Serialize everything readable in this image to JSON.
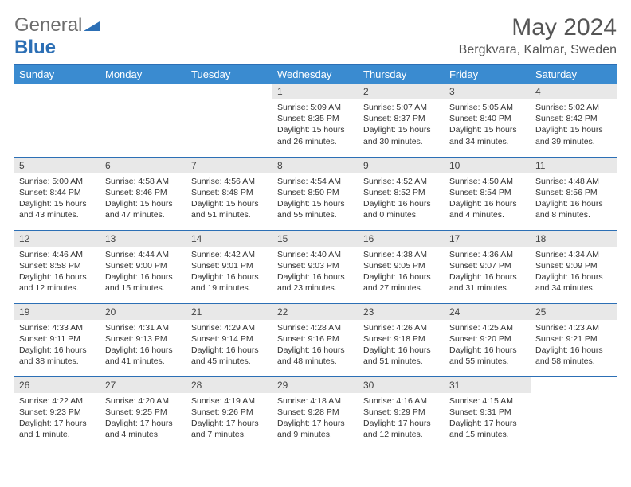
{
  "logo": {
    "text1": "General",
    "text2": "Blue"
  },
  "title": "May 2024",
  "location": "Bergkvara, Kalmar, Sweden",
  "colors": {
    "header_bg": "#3a8bd0",
    "rule": "#2c6fb5",
    "daynum_bg": "#e8e8e8",
    "text": "#333333",
    "logo_gray": "#6d6d6d",
    "logo_blue": "#2c6fb5"
  },
  "day_headers": [
    "Sunday",
    "Monday",
    "Tuesday",
    "Wednesday",
    "Thursday",
    "Friday",
    "Saturday"
  ],
  "weeks": [
    [
      null,
      null,
      null,
      {
        "n": "1",
        "sunrise": "Sunrise: 5:09 AM",
        "sunset": "Sunset: 8:35 PM",
        "daylight": "Daylight: 15 hours and 26 minutes."
      },
      {
        "n": "2",
        "sunrise": "Sunrise: 5:07 AM",
        "sunset": "Sunset: 8:37 PM",
        "daylight": "Daylight: 15 hours and 30 minutes."
      },
      {
        "n": "3",
        "sunrise": "Sunrise: 5:05 AM",
        "sunset": "Sunset: 8:40 PM",
        "daylight": "Daylight: 15 hours and 34 minutes."
      },
      {
        "n": "4",
        "sunrise": "Sunrise: 5:02 AM",
        "sunset": "Sunset: 8:42 PM",
        "daylight": "Daylight: 15 hours and 39 minutes."
      }
    ],
    [
      {
        "n": "5",
        "sunrise": "Sunrise: 5:00 AM",
        "sunset": "Sunset: 8:44 PM",
        "daylight": "Daylight: 15 hours and 43 minutes."
      },
      {
        "n": "6",
        "sunrise": "Sunrise: 4:58 AM",
        "sunset": "Sunset: 8:46 PM",
        "daylight": "Daylight: 15 hours and 47 minutes."
      },
      {
        "n": "7",
        "sunrise": "Sunrise: 4:56 AM",
        "sunset": "Sunset: 8:48 PM",
        "daylight": "Daylight: 15 hours and 51 minutes."
      },
      {
        "n": "8",
        "sunrise": "Sunrise: 4:54 AM",
        "sunset": "Sunset: 8:50 PM",
        "daylight": "Daylight: 15 hours and 55 minutes."
      },
      {
        "n": "9",
        "sunrise": "Sunrise: 4:52 AM",
        "sunset": "Sunset: 8:52 PM",
        "daylight": "Daylight: 16 hours and 0 minutes."
      },
      {
        "n": "10",
        "sunrise": "Sunrise: 4:50 AM",
        "sunset": "Sunset: 8:54 PM",
        "daylight": "Daylight: 16 hours and 4 minutes."
      },
      {
        "n": "11",
        "sunrise": "Sunrise: 4:48 AM",
        "sunset": "Sunset: 8:56 PM",
        "daylight": "Daylight: 16 hours and 8 minutes."
      }
    ],
    [
      {
        "n": "12",
        "sunrise": "Sunrise: 4:46 AM",
        "sunset": "Sunset: 8:58 PM",
        "daylight": "Daylight: 16 hours and 12 minutes."
      },
      {
        "n": "13",
        "sunrise": "Sunrise: 4:44 AM",
        "sunset": "Sunset: 9:00 PM",
        "daylight": "Daylight: 16 hours and 15 minutes."
      },
      {
        "n": "14",
        "sunrise": "Sunrise: 4:42 AM",
        "sunset": "Sunset: 9:01 PM",
        "daylight": "Daylight: 16 hours and 19 minutes."
      },
      {
        "n": "15",
        "sunrise": "Sunrise: 4:40 AM",
        "sunset": "Sunset: 9:03 PM",
        "daylight": "Daylight: 16 hours and 23 minutes."
      },
      {
        "n": "16",
        "sunrise": "Sunrise: 4:38 AM",
        "sunset": "Sunset: 9:05 PM",
        "daylight": "Daylight: 16 hours and 27 minutes."
      },
      {
        "n": "17",
        "sunrise": "Sunrise: 4:36 AM",
        "sunset": "Sunset: 9:07 PM",
        "daylight": "Daylight: 16 hours and 31 minutes."
      },
      {
        "n": "18",
        "sunrise": "Sunrise: 4:34 AM",
        "sunset": "Sunset: 9:09 PM",
        "daylight": "Daylight: 16 hours and 34 minutes."
      }
    ],
    [
      {
        "n": "19",
        "sunrise": "Sunrise: 4:33 AM",
        "sunset": "Sunset: 9:11 PM",
        "daylight": "Daylight: 16 hours and 38 minutes."
      },
      {
        "n": "20",
        "sunrise": "Sunrise: 4:31 AM",
        "sunset": "Sunset: 9:13 PM",
        "daylight": "Daylight: 16 hours and 41 minutes."
      },
      {
        "n": "21",
        "sunrise": "Sunrise: 4:29 AM",
        "sunset": "Sunset: 9:14 PM",
        "daylight": "Daylight: 16 hours and 45 minutes."
      },
      {
        "n": "22",
        "sunrise": "Sunrise: 4:28 AM",
        "sunset": "Sunset: 9:16 PM",
        "daylight": "Daylight: 16 hours and 48 minutes."
      },
      {
        "n": "23",
        "sunrise": "Sunrise: 4:26 AM",
        "sunset": "Sunset: 9:18 PM",
        "daylight": "Daylight: 16 hours and 51 minutes."
      },
      {
        "n": "24",
        "sunrise": "Sunrise: 4:25 AM",
        "sunset": "Sunset: 9:20 PM",
        "daylight": "Daylight: 16 hours and 55 minutes."
      },
      {
        "n": "25",
        "sunrise": "Sunrise: 4:23 AM",
        "sunset": "Sunset: 9:21 PM",
        "daylight": "Daylight: 16 hours and 58 minutes."
      }
    ],
    [
      {
        "n": "26",
        "sunrise": "Sunrise: 4:22 AM",
        "sunset": "Sunset: 9:23 PM",
        "daylight": "Daylight: 17 hours and 1 minute."
      },
      {
        "n": "27",
        "sunrise": "Sunrise: 4:20 AM",
        "sunset": "Sunset: 9:25 PM",
        "daylight": "Daylight: 17 hours and 4 minutes."
      },
      {
        "n": "28",
        "sunrise": "Sunrise: 4:19 AM",
        "sunset": "Sunset: 9:26 PM",
        "daylight": "Daylight: 17 hours and 7 minutes."
      },
      {
        "n": "29",
        "sunrise": "Sunrise: 4:18 AM",
        "sunset": "Sunset: 9:28 PM",
        "daylight": "Daylight: 17 hours and 9 minutes."
      },
      {
        "n": "30",
        "sunrise": "Sunrise: 4:16 AM",
        "sunset": "Sunset: 9:29 PM",
        "daylight": "Daylight: 17 hours and 12 minutes."
      },
      {
        "n": "31",
        "sunrise": "Sunrise: 4:15 AM",
        "sunset": "Sunset: 9:31 PM",
        "daylight": "Daylight: 17 hours and 15 minutes."
      },
      null
    ]
  ]
}
